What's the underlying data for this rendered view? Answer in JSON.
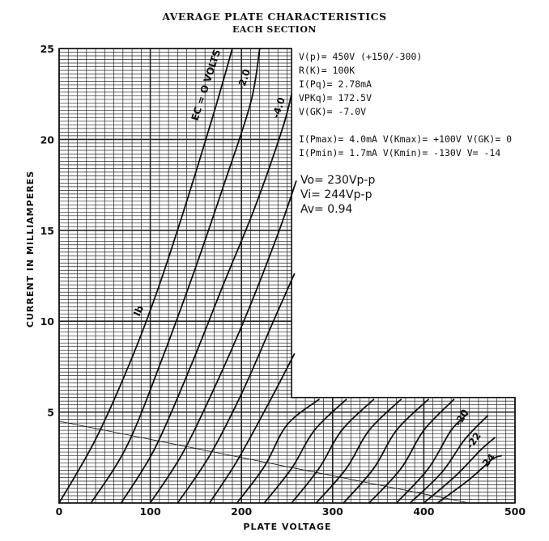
{
  "chart_data": {
    "type": "line",
    "title": "AVERAGE PLATE CHARACTERISTICS",
    "subtitle": "EACH SECTION",
    "xlabel": "PLATE VOLTAGE",
    "ylabel": "CURRENT IN MILLIAMPERES",
    "xlim": [
      0,
      500
    ],
    "ylim": [
      0,
      25
    ],
    "x_ticks": [
      "0",
      "100",
      "200",
      "300",
      "400",
      "500"
    ],
    "y_ticks": [
      "5",
      "10",
      "15",
      "20",
      "25"
    ],
    "grid": true,
    "curve_labels": [
      "EC = O VOLTS",
      "-2.0",
      "-4.0",
      "-20",
      "-22",
      "-24",
      "Ib"
    ],
    "series": [
      {
        "name": "EC = O VOLTS",
        "x": [
          0,
          40,
          80,
          110,
          140,
          170,
          190
        ],
        "y": [
          0,
          3.5,
          8,
          12,
          16.6,
          21.5,
          25
        ]
      },
      {
        "name": "-2.0",
        "x": [
          35,
          75,
          115,
          150,
          180,
          210,
          220
        ],
        "y": [
          0,
          3.2,
          8.2,
          13,
          17.4,
          22,
          25
        ]
      },
      {
        "name": "-4.0",
        "x": [
          68,
          105,
          145,
          180,
          215,
          245,
          255
        ],
        "y": [
          0,
          3,
          7.6,
          12,
          16.3,
          20.6,
          22.5
        ]
      },
      {
        "name": "",
        "x": [
          100,
          135,
          170,
          205,
          240,
          260
        ],
        "y": [
          0,
          2.7,
          6.3,
          10.3,
          14.8,
          17.7
        ]
      },
      {
        "name": "",
        "x": [
          130,
          165,
          200,
          235,
          258
        ],
        "y": [
          0,
          2.6,
          6,
          10,
          12.6
        ]
      },
      {
        "name": "",
        "x": [
          165,
          195,
          230,
          258
        ],
        "y": [
          0,
          2.3,
          5.5,
          8.2
        ]
      },
      {
        "name": "",
        "x": [
          195,
          225,
          250,
          285
        ],
        "y": [
          0,
          2,
          4.3,
          5.7
        ]
      },
      {
        "name": "",
        "x": [
          225,
          255,
          280,
          315
        ],
        "y": [
          0,
          1.9,
          4,
          5.7
        ]
      },
      {
        "name": "",
        "x": [
          255,
          285,
          310,
          345
        ],
        "y": [
          0,
          1.9,
          4,
          5.7
        ]
      },
      {
        "name": "",
        "x": [
          282,
          315,
          340,
          375
        ],
        "y": [
          0,
          1.9,
          4,
          5.7
        ]
      },
      {
        "name": "",
        "x": [
          312,
          345,
          370,
          405
        ],
        "y": [
          0,
          1.9,
          4,
          5.7
        ]
      },
      {
        "name": "",
        "x": [
          340,
          375,
          400,
          433
        ],
        "y": [
          0,
          1.9,
          4,
          5.7
        ]
      },
      {
        "name": "",
        "x": [
          370,
          405,
          430,
          448
        ],
        "y": [
          0,
          1.9,
          4,
          4.9
        ]
      },
      {
        "name": "-20",
        "x": [
          385,
          420,
          445,
          470
        ],
        "y": [
          0,
          1.7,
          3.5,
          4.8
        ]
      },
      {
        "name": "-22",
        "x": [
          400,
          435,
          462,
          478
        ],
        "y": [
          0,
          1.5,
          2.9,
          3.6
        ]
      },
      {
        "name": "-24",
        "x": [
          415,
          450,
          475,
          485
        ],
        "y": [
          0,
          1.3,
          2.4,
          2.6
        ]
      }
    ],
    "load_line": {
      "x": [
        0,
        450
      ],
      "y": [
        4.5,
        0
      ]
    },
    "colors": {
      "ink": "#111111",
      "grid": "#222222",
      "background": "#ffffff"
    }
  },
  "notes": {
    "mono_lines": [
      "V(p)=  450V (+150/-300)",
      "R(K)=  100K",
      "I(Pq)= 2.78mA",
      "VPKq)= 172.5V",
      "V(GK)= -7.0V",
      "I(Pmax)= 4.0mA V(Kmax)= +100V V(GK)= 0",
      "I(Pmin)= 1.7mA V(Kmin)= -130V V= -14"
    ],
    "sans_lines": [
      "Vo= 230Vp-p",
      "Vi= 244Vp-p",
      "Av= 0.94"
    ]
  }
}
